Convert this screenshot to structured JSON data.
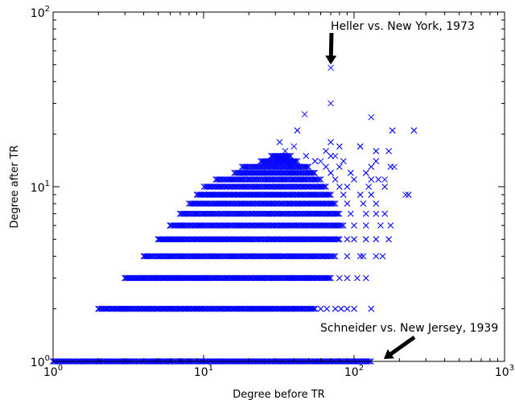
{
  "chart_data": {
    "type": "scatter",
    "title": "",
    "xlabel": "Degree before TR",
    "ylabel": "Degree after TR",
    "xscale": "log",
    "yscale": "log",
    "xlim": [
      1,
      1000
    ],
    "ylim": [
      1,
      100
    ],
    "grid": false,
    "marker": "x",
    "color": "#0000ff",
    "x_ticks": [
      {
        "base": "10",
        "exp": "0",
        "value": 1
      },
      {
        "base": "10",
        "exp": "1",
        "value": 10
      },
      {
        "base": "10",
        "exp": "2",
        "value": 100
      },
      {
        "base": "10",
        "exp": "3",
        "value": 1000
      }
    ],
    "y_ticks": [
      {
        "base": "10",
        "exp": "0",
        "value": 1
      },
      {
        "base": "10",
        "exp": "1",
        "value": 10
      },
      {
        "base": "10",
        "exp": "2",
        "value": 100
      }
    ],
    "rows": [
      {
        "y": 1,
        "xmin": 1,
        "xmax": 130,
        "extra": [
          1,
          2,
          3,
          4,
          5,
          6,
          7
        ]
      },
      {
        "y": 2,
        "xmin": 2,
        "xmax": 55,
        "extra": [
          2,
          3,
          4,
          5,
          6,
          7,
          60,
          66,
          75,
          82,
          90,
          100,
          130
        ]
      },
      {
        "y": 3,
        "xmin": 3,
        "xmax": 70,
        "extra": [
          3,
          4,
          5,
          6,
          7,
          80,
          90,
          105,
          120
        ]
      },
      {
        "y": 4,
        "xmin": 4,
        "xmax": 75,
        "extra": [
          4,
          5,
          6,
          7,
          90,
          110,
          115,
          140,
          155
        ]
      },
      {
        "y": 5,
        "xmin": 5,
        "xmax": 80,
        "extra": [
          5,
          6,
          7,
          90,
          100,
          120,
          140,
          170
        ]
      },
      {
        "y": 6,
        "xmin": 6,
        "xmax": 85,
        "extra": [
          6,
          7,
          100,
          120,
          150,
          175
        ]
      },
      {
        "y": 7,
        "xmin": 7,
        "xmax": 80,
        "extra": [
          7,
          95,
          120,
          140,
          160
        ]
      },
      {
        "y": 8,
        "xmin": 8,
        "xmax": 75,
        "extra": [
          90,
          115,
          140
        ]
      },
      {
        "y": 9,
        "xmin": 9,
        "xmax": 70,
        "extra": [
          85,
          110,
          130,
          230
        ]
      },
      {
        "y": 10,
        "xmin": 10,
        "xmax": 65,
        "extra": [
          80,
          90,
          125,
          160
        ]
      },
      {
        "y": 11,
        "xmin": 12,
        "xmax": 60,
        "extra": [
          75,
          100,
          130,
          145
        ]
      },
      {
        "y": 12,
        "xmin": 16,
        "xmax": 55,
        "extra": [
          70,
          95,
          120
        ]
      },
      {
        "y": 13,
        "xmin": 18,
        "xmax": 50,
        "extra": [
          65,
          80,
          130,
          175
        ]
      },
      {
        "y": 14,
        "xmin": 24,
        "xmax": 42,
        "extra": [
          55,
          85,
          140
        ]
      },
      {
        "y": 15,
        "xmin": 28,
        "xmax": 38,
        "extra": [
          48,
          70
        ]
      },
      {
        "y": 16,
        "xmin": 35,
        "xmax": 35,
        "extra": [
          65,
          140,
          170
        ]
      },
      {
        "y": 17,
        "xmin": 40,
        "xmax": 40,
        "extra": [
          80,
          110
        ]
      },
      {
        "y": 18,
        "xmin": 32,
        "xmax": 32,
        "extra": [
          70
        ]
      },
      {
        "y": 21,
        "xmin": 42,
        "xmax": 42,
        "extra": [
          180,
          250
        ]
      }
    ],
    "points": [
      {
        "x": 70,
        "y": 48
      },
      {
        "x": 70,
        "y": 30
      },
      {
        "x": 47,
        "y": 26
      },
      {
        "x": 130,
        "y": 25
      },
      {
        "x": 42,
        "y": 21
      },
      {
        "x": 180,
        "y": 21
      },
      {
        "x": 250,
        "y": 21
      },
      {
        "x": 110,
        "y": 17
      },
      {
        "x": 32,
        "y": 18
      },
      {
        "x": 220,
        "y": 9
      },
      {
        "x": 140,
        "y": 16
      },
      {
        "x": 185,
        "y": 13
      },
      {
        "x": 160,
        "y": 11
      },
      {
        "x": 60,
        "y": 14
      },
      {
        "x": 75,
        "y": 15
      }
    ],
    "annotations": [
      {
        "text": "Heller vs. New York, 1973",
        "x": 70,
        "y": 48
      },
      {
        "text": "Schneider vs. New Jersey, 1939",
        "x": 150,
        "y": 1
      }
    ]
  }
}
